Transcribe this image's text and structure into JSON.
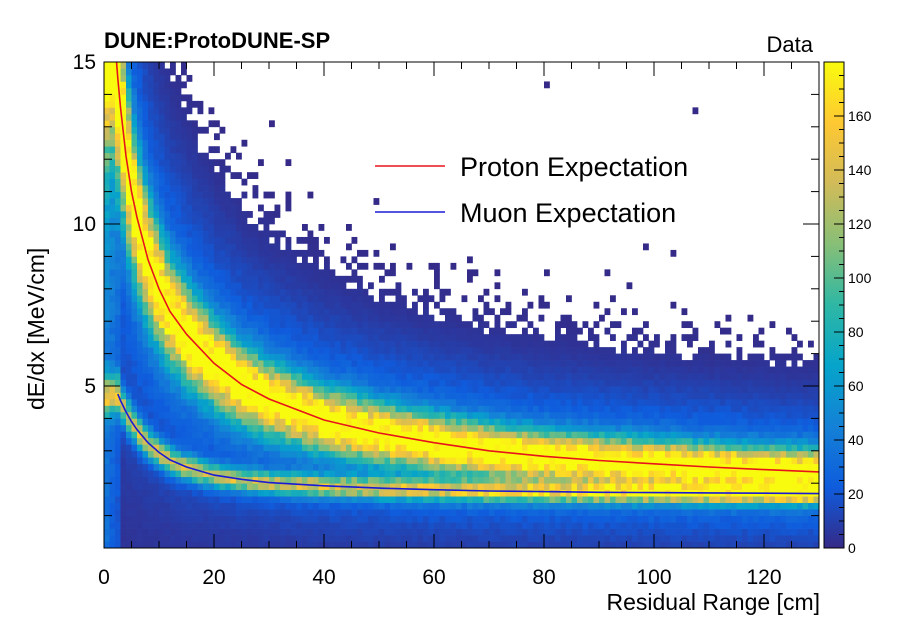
{
  "chart_data": {
    "type": "heatmap",
    "title": "DUNE:ProtoDUNE-SP",
    "tag": "Data",
    "xlabel": "Residual Range [cm]",
    "ylabel": "dE/dx [MeV/cm]",
    "xlim": [
      0,
      130
    ],
    "ylim": [
      0,
      15
    ],
    "xticks": [
      0,
      20,
      40,
      60,
      80,
      100,
      120
    ],
    "yticks": [
      5,
      10,
      15
    ],
    "colorbar": {
      "range": [
        0,
        180
      ],
      "ticks": [
        0,
        20,
        40,
        60,
        80,
        100,
        120,
        140,
        160
      ],
      "colors": [
        "#352a87",
        "#0f5cdd",
        "#1481d6",
        "#06a4ca",
        "#2eb7a4",
        "#87bf77",
        "#d1bb59",
        "#fec832",
        "#f9fb0e"
      ]
    },
    "series": [
      {
        "name": "Proton Expectation",
        "color": "#e8141c",
        "x": [
          2,
          2.5,
          3,
          4,
          5,
          6,
          8,
          10,
          12,
          15,
          20,
          25,
          30,
          40,
          50,
          60,
          70,
          80,
          90,
          100,
          110,
          120,
          130
        ],
        "y": [
          15.6,
          14.5,
          13.6,
          12.1,
          11.0,
          10.2,
          8.9,
          8.0,
          7.3,
          6.6,
          5.7,
          5.05,
          4.6,
          3.95,
          3.55,
          3.25,
          3.0,
          2.83,
          2.7,
          2.6,
          2.5,
          2.42,
          2.35
        ]
      },
      {
        "name": "Muon Expectation",
        "color": "#1b1bd6",
        "x": [
          2.5,
          3,
          4,
          5,
          6,
          8,
          10,
          12,
          15,
          20,
          25,
          30,
          40,
          50,
          60,
          70,
          80,
          90,
          100,
          110,
          120,
          130
        ],
        "y": [
          4.75,
          4.55,
          4.2,
          3.9,
          3.65,
          3.25,
          2.95,
          2.72,
          2.5,
          2.25,
          2.12,
          2.02,
          1.92,
          1.85,
          1.8,
          1.76,
          1.74,
          1.72,
          1.71,
          1.7,
          1.69,
          1.68
        ]
      }
    ],
    "legend_position": "top-center"
  }
}
